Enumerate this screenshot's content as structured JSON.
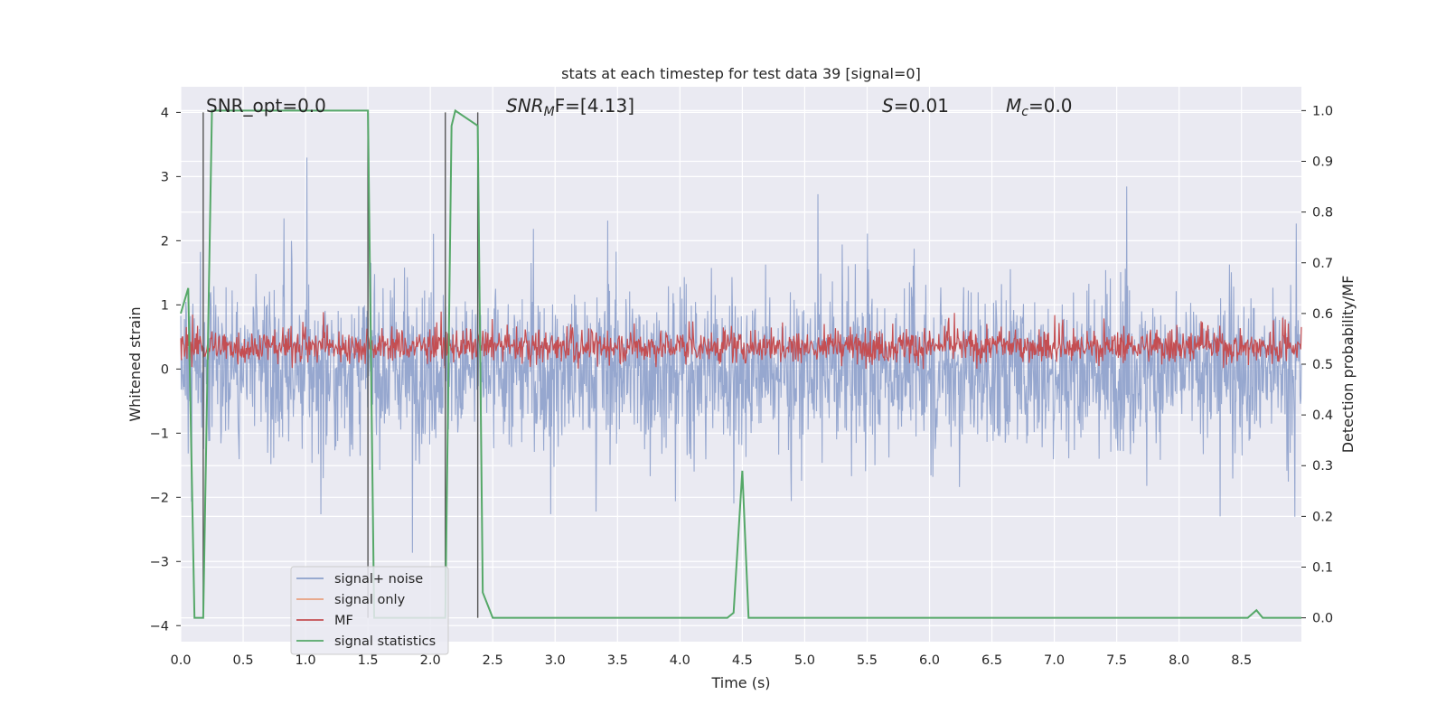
{
  "chart_data": {
    "type": "line",
    "title": "stats at each timestep for test data 39 [signal=0]",
    "xlabel": "Time (s)",
    "ylabel": "Whitened strain",
    "y2label": "Detection probability/MF",
    "xlim": [
      0.0,
      8.98
    ],
    "ylim": [
      -4.25,
      4.4
    ],
    "y2lim": [
      -0.047,
      1.047
    ],
    "x_ticks": [
      "0.0",
      "0.5",
      "1.0",
      "1.5",
      "2.0",
      "2.5",
      "3.0",
      "3.5",
      "4.0",
      "4.5",
      "5.0",
      "5.5",
      "6.0",
      "6.5",
      "7.0",
      "7.5",
      "8.0",
      "8.5"
    ],
    "y_ticks": [
      "4",
      "3",
      "2",
      "1",
      "0",
      "−1",
      "−2",
      "−3",
      "−4"
    ],
    "y2_ticks": [
      "1.0",
      "0.9",
      "0.8",
      "0.7",
      "0.6",
      "0.5",
      "0.4",
      "0.3",
      "0.2",
      "0.1",
      "0.0"
    ],
    "grid": true,
    "legend_position": "lower-left",
    "annotations": {
      "snr_opt": "SNR_opt=0.0",
      "snr_mf_main": "SNR",
      "snr_mf_sub": "M",
      "snr_mf_rest": "F=[4.13]",
      "s_main": "S",
      "s_rest": "=0.01",
      "mc_main": "M",
      "mc_sub": "c",
      "mc_rest": "=0.0"
    },
    "series": [
      {
        "name": "signal+ noise",
        "color": "#8da0cb",
        "axis": "left",
        "description_kind": "noise",
        "envelope_typical": [
          -1.7,
          1.7
        ],
        "envelope_peak": [
          -3.8,
          4.0
        ]
      },
      {
        "name": "signal only",
        "color": "#e8a07f",
        "axis": "left",
        "values": []
      },
      {
        "name": "MF",
        "color": "#c44e52",
        "axis": "left",
        "description_kind": "noise",
        "range": [
          0.0,
          1.0
        ]
      },
      {
        "name": "signal statistics",
        "color": "#55a868",
        "axis": "right",
        "x": [
          0.0,
          0.06,
          0.11,
          0.13,
          0.18,
          0.25,
          0.27,
          1.5,
          1.55,
          1.58,
          2.12,
          2.17,
          2.2,
          2.38,
          2.42,
          2.5,
          4.38,
          4.43,
          4.5,
          4.55,
          8.55,
          8.62,
          8.67,
          8.98
        ],
        "values": [
          0.6,
          0.65,
          0.0,
          0.0,
          0.0,
          1.0,
          1.0,
          1.0,
          0.0,
          0.0,
          0.0,
          0.97,
          1.0,
          0.97,
          0.05,
          0.0,
          0.0,
          0.01,
          0.29,
          0.0,
          0.0,
          0.015,
          0.0,
          0.0
        ]
      }
    ],
    "vertical_lines_x": [
      0.18,
      1.5,
      2.12,
      2.38
    ]
  }
}
